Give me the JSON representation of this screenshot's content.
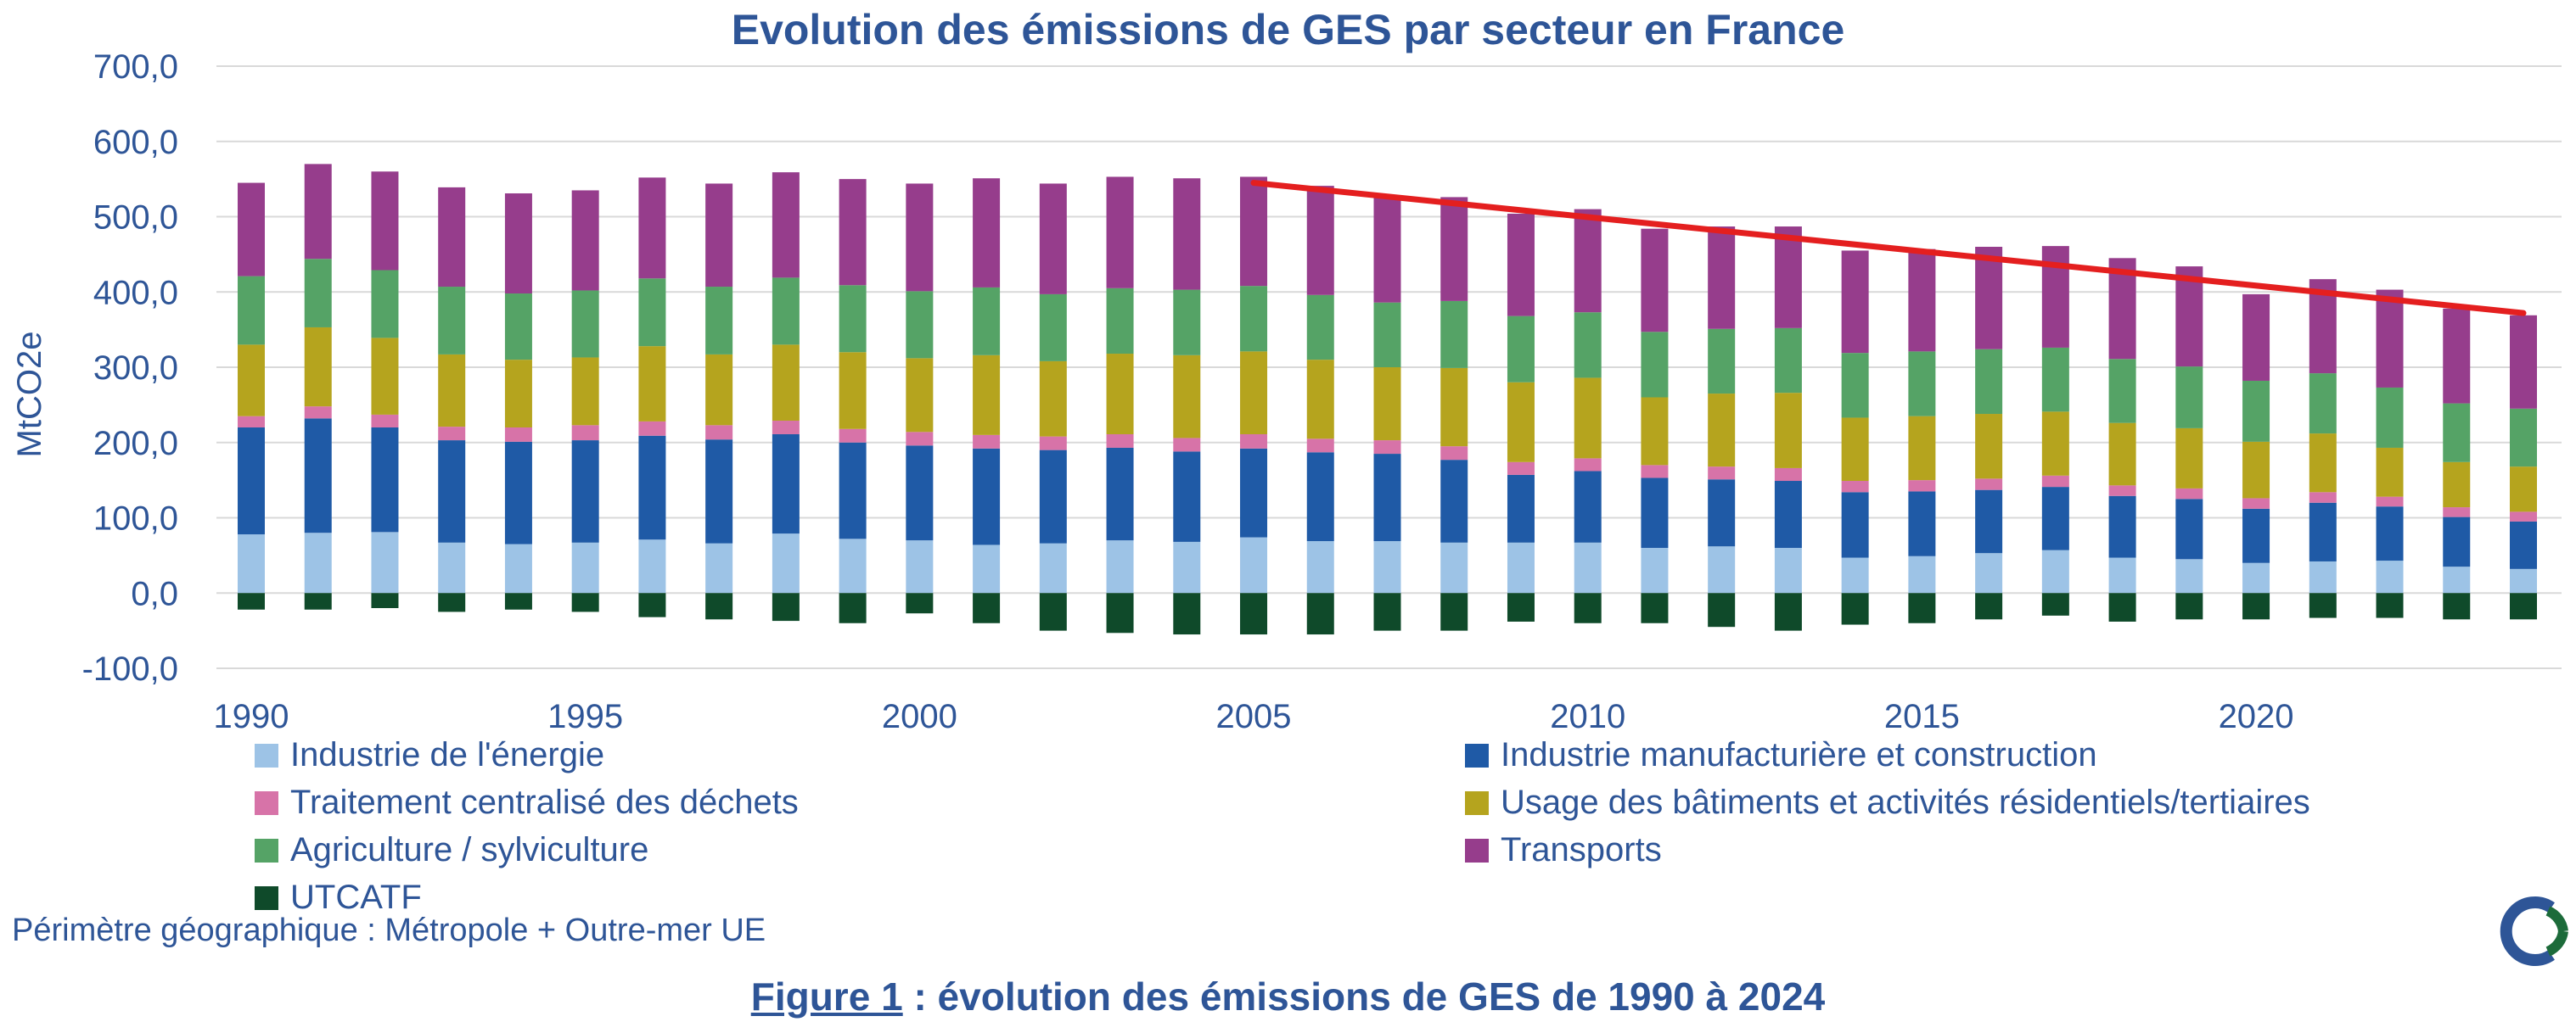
{
  "title": "Evolution des émissions de GES par secteur en France",
  "chart_data": {
    "type": "bar",
    "stacked": true,
    "title": "Evolution des émissions de GES par secteur en France",
    "ylabel": "MtCO2e",
    "xlabel": "",
    "ylim": [
      -100,
      700
    ],
    "yticks": [
      "700,0",
      "600,0",
      "500,0",
      "400,0",
      "300,0",
      "200,0",
      "100,0",
      "0,0",
      "-100,0"
    ],
    "xticks": [
      "1990",
      "1995",
      "2000",
      "2005",
      "2010",
      "2015",
      "2020"
    ],
    "grid": true,
    "legend_position": "bottom",
    "categories": [
      1990,
      1991,
      1992,
      1993,
      1994,
      1995,
      1996,
      1997,
      1998,
      1999,
      2000,
      2001,
      2002,
      2003,
      2004,
      2005,
      2006,
      2007,
      2008,
      2009,
      2010,
      2011,
      2012,
      2013,
      2014,
      2015,
      2016,
      2017,
      2018,
      2019,
      2020,
      2021,
      2022,
      2023,
      2024
    ],
    "series": [
      {
        "name": "Industrie de l'énergie",
        "color": "#9dc3e6",
        "values": [
          78,
          80,
          81,
          67,
          65,
          67,
          71,
          66,
          79,
          72,
          70,
          64,
          66,
          70,
          68,
          74,
          69,
          69,
          67,
          67,
          67,
          60,
          62,
          60,
          47,
          49,
          53,
          57,
          47,
          45,
          40,
          42,
          43,
          35,
          32
        ]
      },
      {
        "name": "Industrie manufacturière et construction",
        "color": "#1f5aa6",
        "values": [
          142,
          152,
          139,
          136,
          136,
          136,
          138,
          138,
          132,
          128,
          126,
          128,
          124,
          123,
          120,
          118,
          118,
          116,
          110,
          90,
          95,
          93,
          89,
          89,
          87,
          86,
          84,
          84,
          82,
          80,
          72,
          78,
          72,
          66,
          63
        ]
      },
      {
        "name": "Traitement centralisé des déchets",
        "color": "#d773a8",
        "values": [
          15,
          16,
          17,
          18,
          19,
          20,
          19,
          19,
          18,
          18,
          18,
          18,
          18,
          18,
          18,
          19,
          18,
          18,
          18,
          17,
          17,
          17,
          17,
          17,
          15,
          15,
          15,
          15,
          14,
          14,
          14,
          14,
          13,
          13,
          13
        ]
      },
      {
        "name": "Usage des bâtiments et activités résidentiels/tertiaires",
        "color": "#b5a41e",
        "values": [
          95,
          105,
          102,
          96,
          90,
          90,
          100,
          94,
          101,
          102,
          98,
          106,
          100,
          107,
          110,
          110,
          105,
          97,
          104,
          106,
          107,
          90,
          97,
          100,
          84,
          85,
          86,
          85,
          83,
          80,
          75,
          78,
          65,
          60,
          60
        ]
      },
      {
        "name": "Agriculture / sylviculture",
        "color": "#55a366",
        "values": [
          91,
          91,
          90,
          90,
          88,
          89,
          90,
          90,
          89,
          89,
          89,
          90,
          89,
          87,
          87,
          87,
          86,
          86,
          89,
          88,
          87,
          87,
          86,
          86,
          86,
          86,
          86,
          85,
          85,
          82,
          81,
          80,
          80,
          78,
          77
        ]
      },
      {
        "name": "Transports",
        "color": "#963d8c",
        "values": [
          124,
          126,
          131,
          132,
          133,
          133,
          134,
          137,
          140,
          141,
          143,
          145,
          147,
          148,
          148,
          145,
          145,
          142,
          138,
          136,
          137,
          137,
          136,
          135,
          136,
          136,
          136,
          135,
          134,
          133,
          115,
          125,
          130,
          126,
          124
        ]
      },
      {
        "name": "UTCATF",
        "color": "#0f4a2a",
        "values": [
          -22,
          -22,
          -20,
          -25,
          -22,
          -25,
          -32,
          -35,
          -37,
          -40,
          -27,
          -40,
          -50,
          -53,
          -55,
          -55,
          -55,
          -50,
          -50,
          -38,
          -40,
          -40,
          -45,
          -50,
          -42,
          -40,
          -35,
          -30,
          -38,
          -35,
          -35,
          -33,
          -33,
          -35,
          -35
        ]
      }
    ],
    "trend_line": {
      "color": "#e41f1f",
      "from": {
        "x": 2005,
        "y": 545
      },
      "to": {
        "x": 2024,
        "y": 372
      }
    }
  },
  "legend": [
    {
      "label": "Industrie de l'énergie",
      "color": "#9dc3e6"
    },
    {
      "label": "Industrie manufacturière et construction",
      "color": "#1f5aa6"
    },
    {
      "label": "Traitement centralisé des déchets",
      "color": "#d773a8"
    },
    {
      "label": "Usage des bâtiments et activités résidentiels/tertiaires",
      "color": "#b5a41e"
    },
    {
      "label": "Agriculture / sylviculture",
      "color": "#55a366"
    },
    {
      "label": "Transports",
      "color": "#963d8c"
    },
    {
      "label": "UTCATF",
      "color": "#0f4a2a"
    }
  ],
  "note": "Périmètre géographique : Métropole + Outre-mer UE",
  "caption": {
    "prefix": "Figure 1",
    "rest": " : évolution des émissions de GES de 1990 à 2024"
  },
  "logo_icon": "circular-c-logo-icon"
}
